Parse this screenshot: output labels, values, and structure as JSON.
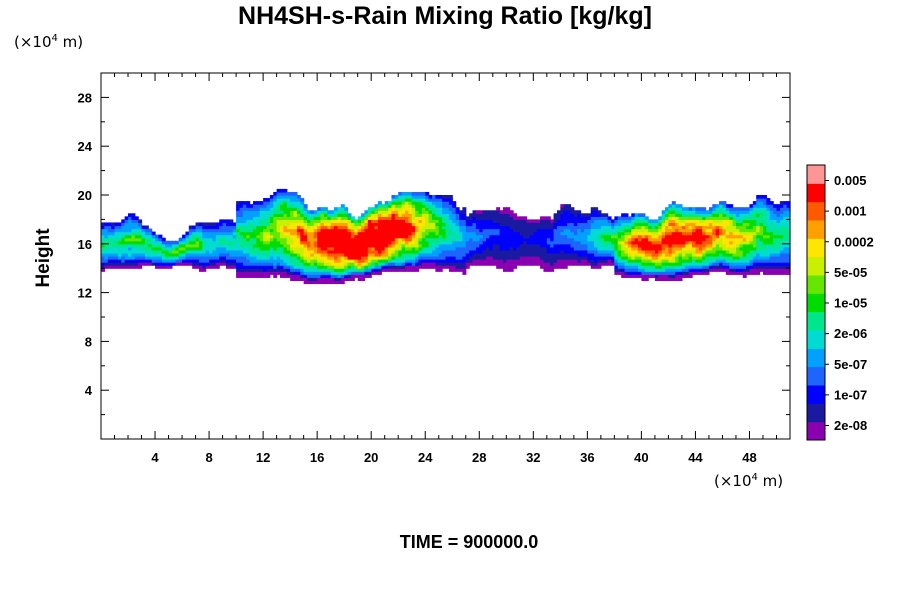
{
  "chart_data": {
    "type": "heatmap",
    "title": "NH4SH-s-Rain Mixing Ratio [kg/kg]",
    "ylabel": "Height",
    "xlabel": "",
    "x_unit": "(×10",
    "x_unit_exp": "4",
    "x_unit_tail": " m)",
    "y_unit": "(×10",
    "y_unit_exp": "4",
    "y_unit_tail": " m)",
    "xlim": [
      0,
      51
    ],
    "ylim": [
      0,
      30
    ],
    "x_ticks": [
      4,
      8,
      12,
      16,
      20,
      24,
      28,
      32,
      36,
      40,
      44,
      48
    ],
    "y_ticks": [
      4,
      8,
      12,
      16,
      20,
      24,
      28
    ],
    "colorbar": {
      "labels": [
        "0.005",
        "0.001",
        "0.0002",
        "5e-05",
        "1e-05",
        "2e-06",
        "5e-07",
        "1e-07",
        "2e-08"
      ],
      "colors": [
        "#8a00b0",
        "#1a1aa0",
        "#0000ff",
        "#1e64ff",
        "#00a0ff",
        "#00dcd2",
        "#00e68c",
        "#00dc00",
        "#64e600",
        "#c8f000",
        "#ffe600",
        "#ffa000",
        "#ff5a00",
        "#ff0000",
        "#ff9696"
      ]
    },
    "field_description_rows": [
      {
        "x0": 0,
        "x1": 10,
        "band": [
          13.8,
          18.4
        ],
        "peak": "green"
      },
      {
        "x0": 10,
        "x1": 27,
        "band": [
          12.6,
          20.0
        ],
        "peak": "orange-red"
      },
      {
        "x0": 27,
        "x1": 38,
        "band": [
          13.8,
          18.7
        ],
        "peak": "cyan-green"
      },
      {
        "x0": 38,
        "x1": 51,
        "band": [
          12.8,
          19.4
        ],
        "peak": "orange-red"
      }
    ],
    "footer": "TIME = 900000.0"
  }
}
